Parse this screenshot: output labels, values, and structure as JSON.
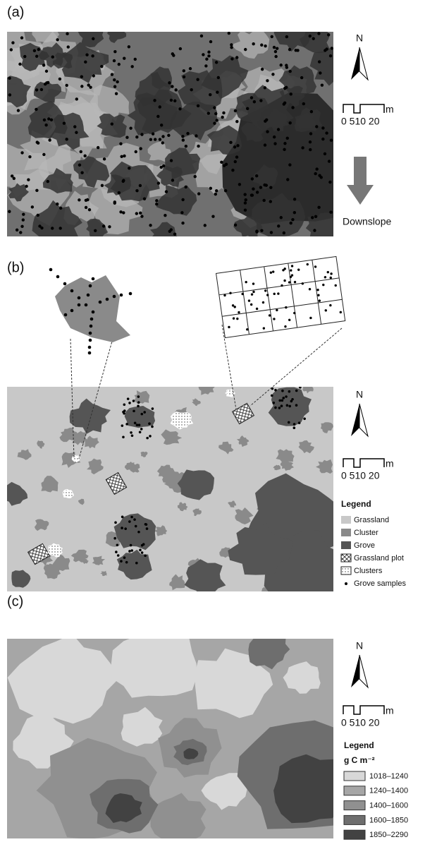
{
  "panels": [
    {
      "label": "(a)",
      "north": "N",
      "scale": {
        "ticks": "0 510 20",
        "unit": "m"
      },
      "arrow_label": "Downslope"
    },
    {
      "label": "(b)",
      "north": "N",
      "scale": {
        "ticks": "0 510 20",
        "unit": "m"
      },
      "legend": {
        "title": "Legend",
        "items": [
          "Grassland",
          "Cluster",
          "Grove",
          "Grassland plot",
          "Clusters",
          "Grove samples"
        ]
      }
    },
    {
      "label": "(c)",
      "north": "N",
      "scale": {
        "ticks": "0 510 20",
        "unit": "m"
      },
      "legend": {
        "title": "Legend",
        "unit": "g  C m⁻²",
        "items": [
          "1018–1240",
          "1240–1400",
          "1400–1600",
          "1600–1850",
          "1850–2290"
        ]
      }
    }
  ]
}
